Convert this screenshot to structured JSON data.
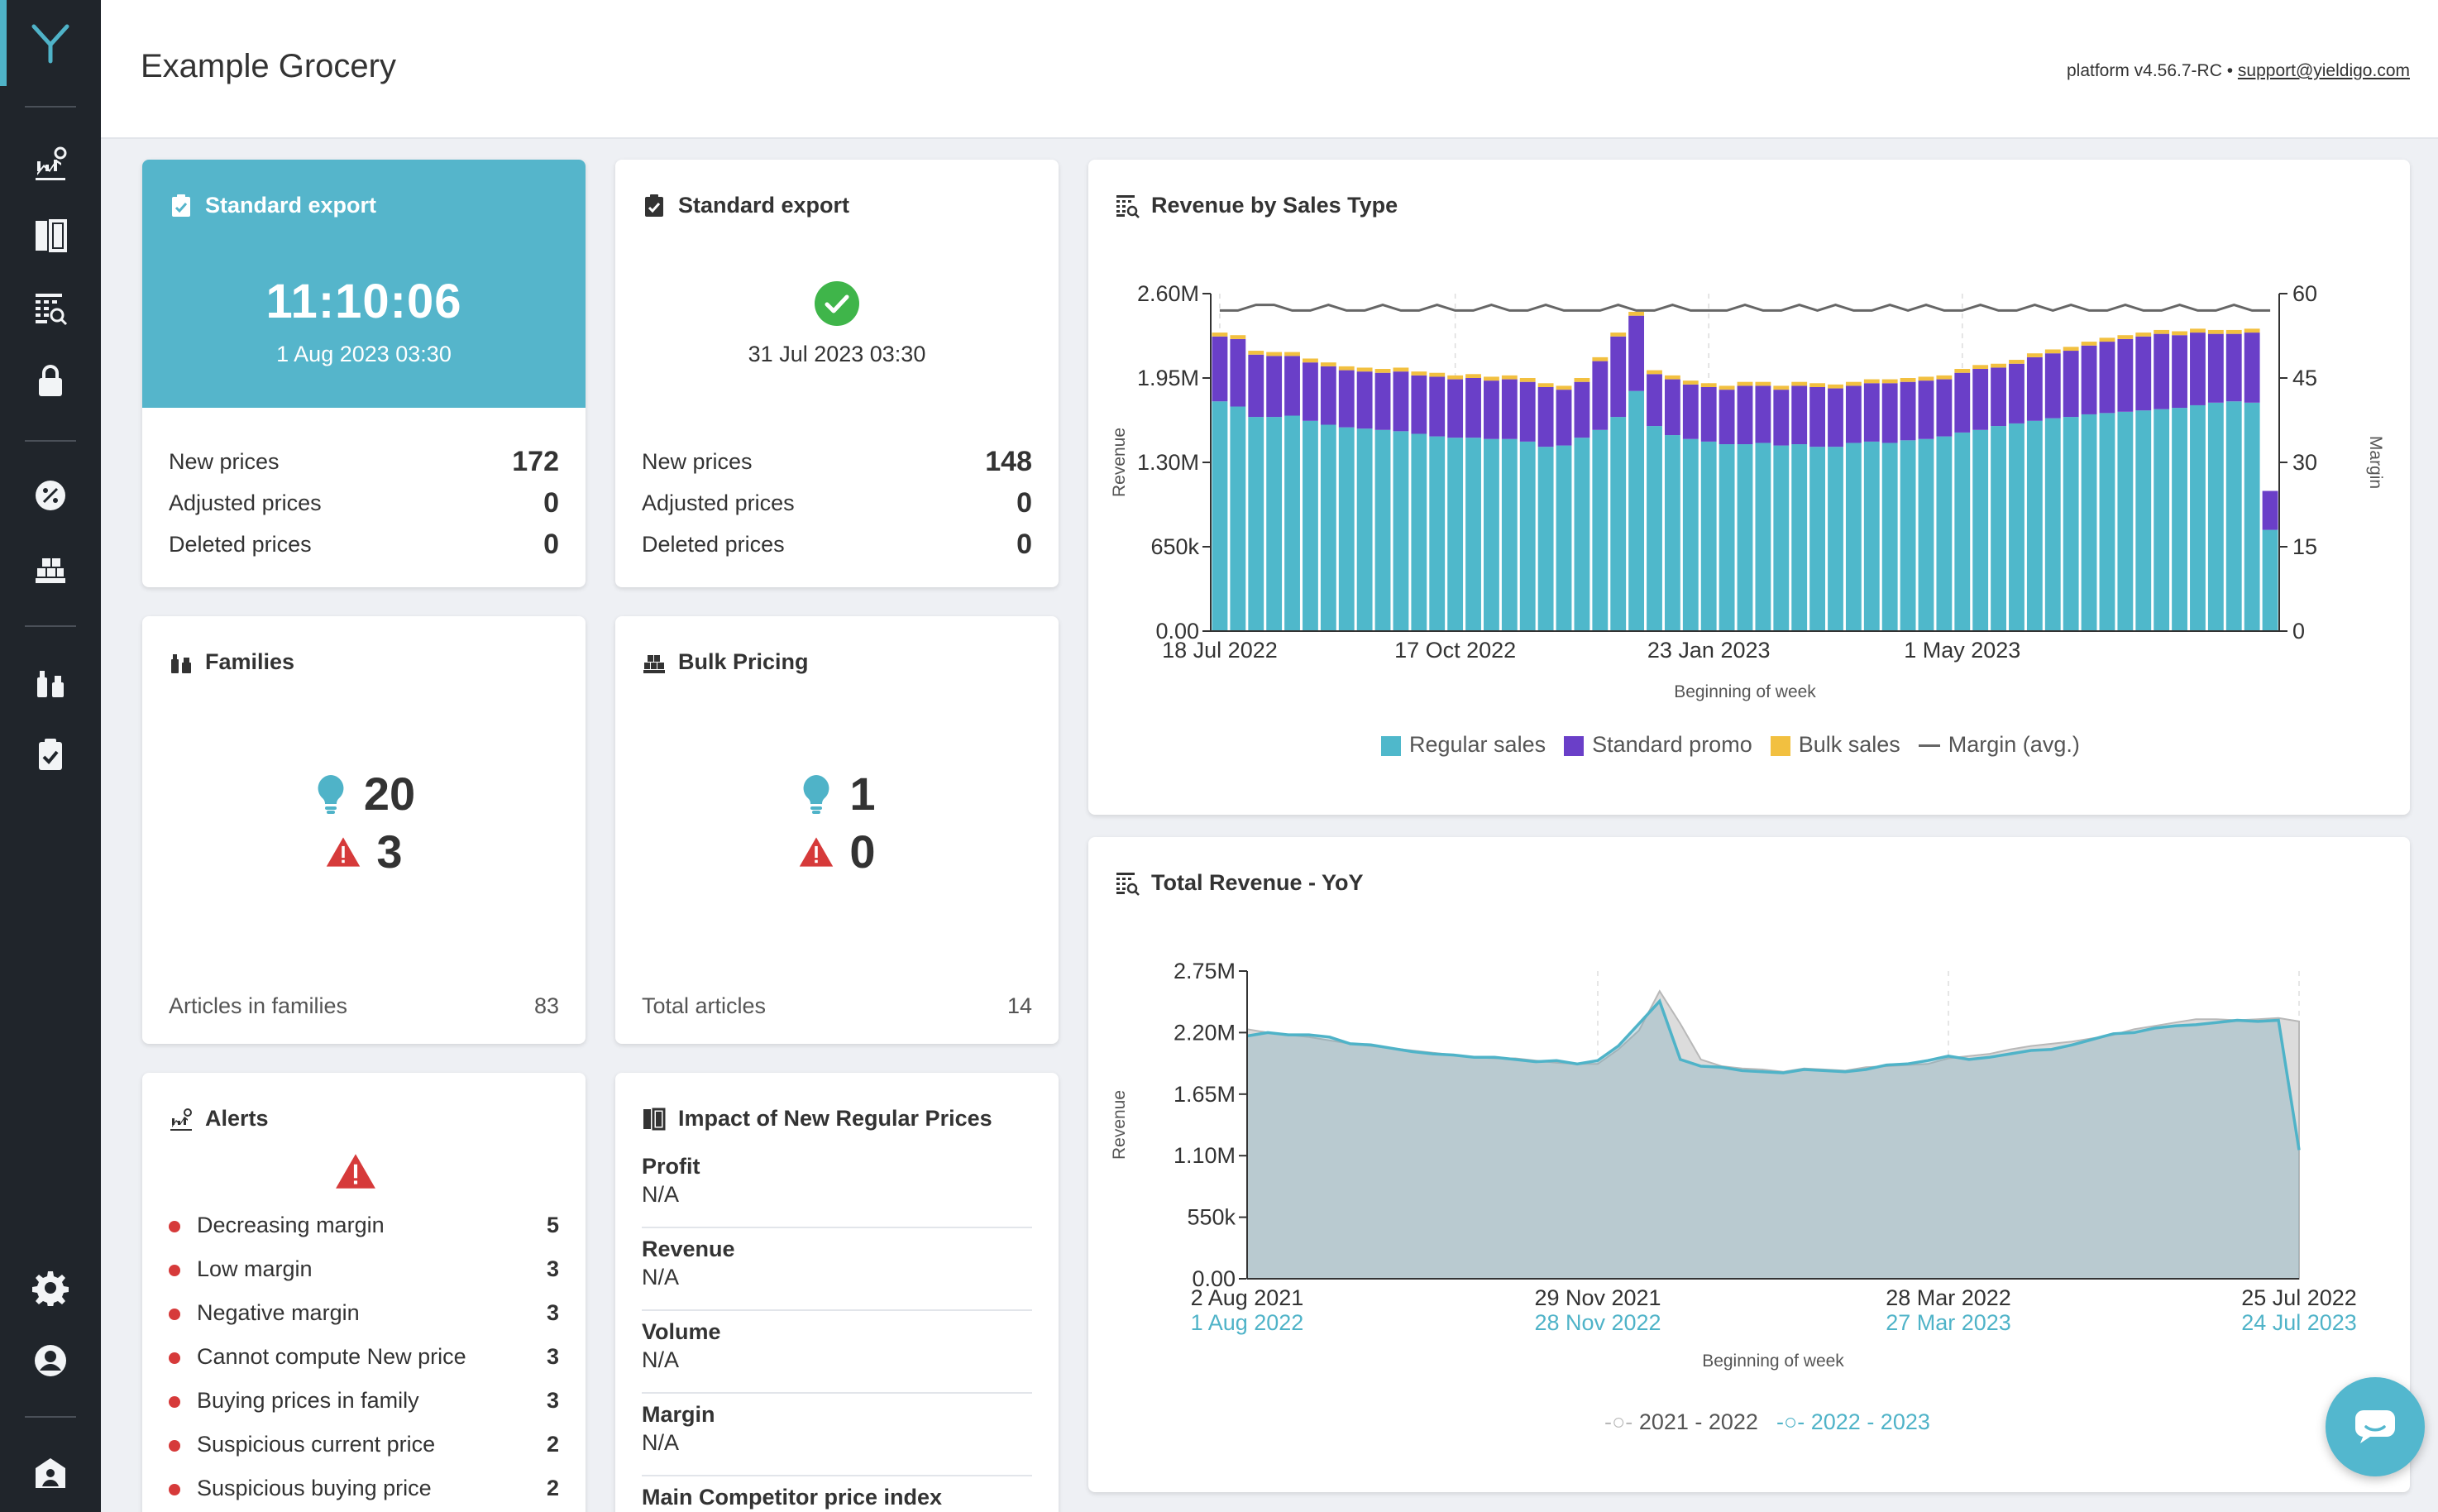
{
  "header": {
    "title": "Example Grocery",
    "version": "platform v4.56.7-RC •",
    "support_link": "support@yieldigo.com"
  },
  "sidebar": {
    "items": [
      "dashboard-icon",
      "pricing-board-icon",
      "reports-icon",
      "lock-icon",
      "promo-icon",
      "bulk-icon",
      "families-icon",
      "exports-icon",
      "settings-icon",
      "user-icon",
      "admin-icon"
    ]
  },
  "export1": {
    "title": "Standard export",
    "time": "11:10:06",
    "date": "1 Aug 2023 03:30",
    "rows": [
      {
        "label": "New prices",
        "value": "172"
      },
      {
        "label": "Adjusted prices",
        "value": "0"
      },
      {
        "label": "Deleted prices",
        "value": "0"
      }
    ]
  },
  "export2": {
    "title": "Standard export",
    "date": "31 Jul 2023 03:30",
    "rows": [
      {
        "label": "New prices",
        "value": "148"
      },
      {
        "label": "Adjusted prices",
        "value": "0"
      },
      {
        "label": "Deleted prices",
        "value": "0"
      }
    ]
  },
  "families": {
    "title": "Families",
    "ideas": "20",
    "warnings": "3",
    "footer_label": "Articles in families",
    "footer_value": "83"
  },
  "bulk": {
    "title": "Bulk Pricing",
    "ideas": "1",
    "warnings": "0",
    "footer_label": "Total articles",
    "footer_value": "14"
  },
  "alerts": {
    "title": "Alerts",
    "items": [
      {
        "label": "Decreasing margin",
        "count": "5"
      },
      {
        "label": "Low margin",
        "count": "3"
      },
      {
        "label": "Negative margin",
        "count": "3"
      },
      {
        "label": "Cannot compute New price",
        "count": "3"
      },
      {
        "label": "Buying prices in family",
        "count": "3"
      },
      {
        "label": "Suspicious current price",
        "count": "2"
      },
      {
        "label": "Suspicious buying price",
        "count": "2"
      }
    ]
  },
  "impact": {
    "title": "Impact of New Regular Prices",
    "rows": [
      {
        "label": "Profit",
        "value": "N/A"
      },
      {
        "label": "Revenue",
        "value": "N/A"
      },
      {
        "label": "Volume",
        "value": "N/A"
      },
      {
        "label": "Margin",
        "value": "N/A"
      },
      {
        "label": "Main Competitor price index",
        "value": ""
      }
    ]
  },
  "colors": {
    "regular": "#4fb8cb",
    "promo": "#6a3fc8",
    "bulk": "#f2c040",
    "margin": "#666666",
    "yoy_prev": "#b8b8b8",
    "yoy_curr": "#4fb3c8",
    "alert": "#d63a3a",
    "idea": "#4fb3c8",
    "ok": "#3fb54a"
  },
  "chart_data": [
    {
      "type": "bar",
      "title": "Revenue by Sales Type",
      "xlabel": "Beginning of week",
      "ylabel": "Revenue",
      "y2label": "Margin",
      "ylim": [
        0,
        2600000
      ],
      "y2lim": [
        0,
        60
      ],
      "yticks": [
        "0.00",
        "650k",
        "1.30M",
        "1.95M",
        "2.60M"
      ],
      "y2ticks": [
        "0",
        "15",
        "30",
        "45",
        "60"
      ],
      "xticks": [
        {
          "index": 0,
          "label": "18 Jul 2022"
        },
        {
          "index": 13,
          "label": "17 Oct 2022"
        },
        {
          "index": 27,
          "label": "23 Jan 2023"
        },
        {
          "index": 41,
          "label": "1 May 2023"
        }
      ],
      "legend": [
        "Regular sales",
        "Standard promo",
        "Bulk sales",
        "Margin (avg.)"
      ],
      "series": [
        {
          "name": "Regular sales",
          "values": [
            1770000,
            1730000,
            1650000,
            1650000,
            1660000,
            1620000,
            1590000,
            1570000,
            1560000,
            1550000,
            1540000,
            1520000,
            1500000,
            1490000,
            1490000,
            1480000,
            1480000,
            1460000,
            1420000,
            1430000,
            1490000,
            1550000,
            1650000,
            1850000,
            1580000,
            1510000,
            1480000,
            1460000,
            1440000,
            1440000,
            1450000,
            1430000,
            1440000,
            1420000,
            1420000,
            1450000,
            1460000,
            1450000,
            1470000,
            1480000,
            1500000,
            1530000,
            1550000,
            1580000,
            1600000,
            1620000,
            1640000,
            1650000,
            1670000,
            1680000,
            1690000,
            1700000,
            1710000,
            1720000,
            1740000,
            1760000,
            1770000,
            1760000,
            780000
          ]
        },
        {
          "name": "Standard promo",
          "values": [
            500000,
            520000,
            480000,
            470000,
            460000,
            450000,
            450000,
            440000,
            440000,
            440000,
            460000,
            450000,
            460000,
            450000,
            460000,
            450000,
            460000,
            460000,
            460000,
            430000,
            430000,
            530000,
            620000,
            580000,
            400000,
            430000,
            420000,
            420000,
            420000,
            450000,
            440000,
            430000,
            450000,
            460000,
            450000,
            440000,
            450000,
            460000,
            450000,
            450000,
            440000,
            460000,
            470000,
            450000,
            460000,
            490000,
            500000,
            510000,
            530000,
            550000,
            560000,
            570000,
            580000,
            560000,
            560000,
            530000,
            520000,
            540000,
            300000
          ]
        },
        {
          "name": "Bulk sales",
          "values": [
            30000,
            30000,
            30000,
            30000,
            30000,
            30000,
            30000,
            30000,
            30000,
            30000,
            30000,
            30000,
            30000,
            30000,
            30000,
            30000,
            30000,
            30000,
            30000,
            30000,
            30000,
            30000,
            30000,
            30000,
            30000,
            30000,
            30000,
            30000,
            30000,
            30000,
            30000,
            30000,
            30000,
            30000,
            30000,
            30000,
            30000,
            30000,
            30000,
            30000,
            30000,
            30000,
            30000,
            30000,
            30000,
            30000,
            30000,
            30000,
            30000,
            30000,
            30000,
            30000,
            30000,
            30000,
            30000,
            30000,
            30000,
            30000,
            0
          ]
        },
        {
          "name": "Margin (avg.)",
          "values": [
            57,
            57,
            58,
            58,
            57,
            57,
            58,
            57,
            57,
            58,
            57,
            57,
            58,
            57,
            57,
            58,
            57,
            57,
            58,
            57,
            57,
            57,
            58,
            57,
            57,
            58,
            57,
            57,
            57,
            58,
            57,
            57,
            58,
            57,
            58,
            57,
            57,
            58,
            57,
            58,
            57,
            57,
            58,
            57,
            57,
            58,
            57,
            58,
            57,
            57,
            58,
            57,
            57,
            58,
            57,
            57,
            58,
            57,
            57
          ]
        }
      ]
    },
    {
      "type": "area",
      "title": "Total Revenue - YoY",
      "xlabel": "Beginning of week",
      "ylabel": "Revenue",
      "ylim": [
        0,
        2750000
      ],
      "yticks": [
        "0.00",
        "550k",
        "1.10M",
        "1.65M",
        "2.20M",
        "2.75M"
      ],
      "xticks": [
        {
          "index": 0,
          "label": "2 Aug 2021",
          "label2": "1 Aug 2022"
        },
        {
          "index": 17,
          "label": "29 Nov 2021",
          "label2": "28 Nov 2022"
        },
        {
          "index": 34,
          "label": "28 Mar 2022",
          "label2": "27 Mar 2023"
        },
        {
          "index": 51,
          "label": "25 Jul 2022",
          "label2": "24 Jul 2023"
        }
      ],
      "legend": [
        "2021 - 2022",
        "2022 - 2023"
      ],
      "series": [
        {
          "name": "2021 - 2022",
          "values": [
            2230000,
            2200000,
            2180000,
            2160000,
            2130000,
            2100000,
            2080000,
            2060000,
            2040000,
            2020000,
            2000000,
            1980000,
            1970000,
            1970000,
            1950000,
            1930000,
            1920000,
            1920000,
            2050000,
            2220000,
            2570000,
            2280000,
            1960000,
            1900000,
            1880000,
            1870000,
            1850000,
            1880000,
            1870000,
            1860000,
            1890000,
            1900000,
            1910000,
            1920000,
            1970000,
            1990000,
            2010000,
            2050000,
            2080000,
            2100000,
            2120000,
            2150000,
            2180000,
            2230000,
            2260000,
            2290000,
            2320000,
            2320000,
            2310000,
            2320000,
            2330000,
            2300000
          ]
        },
        {
          "name": "2022 - 2023",
          "values": [
            2170000,
            2200000,
            2180000,
            2180000,
            2160000,
            2100000,
            2090000,
            2060000,
            2030000,
            2010000,
            2000000,
            1980000,
            1980000,
            1960000,
            1940000,
            1950000,
            1920000,
            1950000,
            2080000,
            2280000,
            2480000,
            1960000,
            1900000,
            1890000,
            1860000,
            1850000,
            1840000,
            1870000,
            1860000,
            1850000,
            1870000,
            1910000,
            1920000,
            1950000,
            1990000,
            1960000,
            1980000,
            2010000,
            2040000,
            2050000,
            2090000,
            2140000,
            2190000,
            2200000,
            2240000,
            2260000,
            2270000,
            2290000,
            2310000,
            2300000,
            2310000,
            1150000
          ]
        }
      ]
    }
  ]
}
